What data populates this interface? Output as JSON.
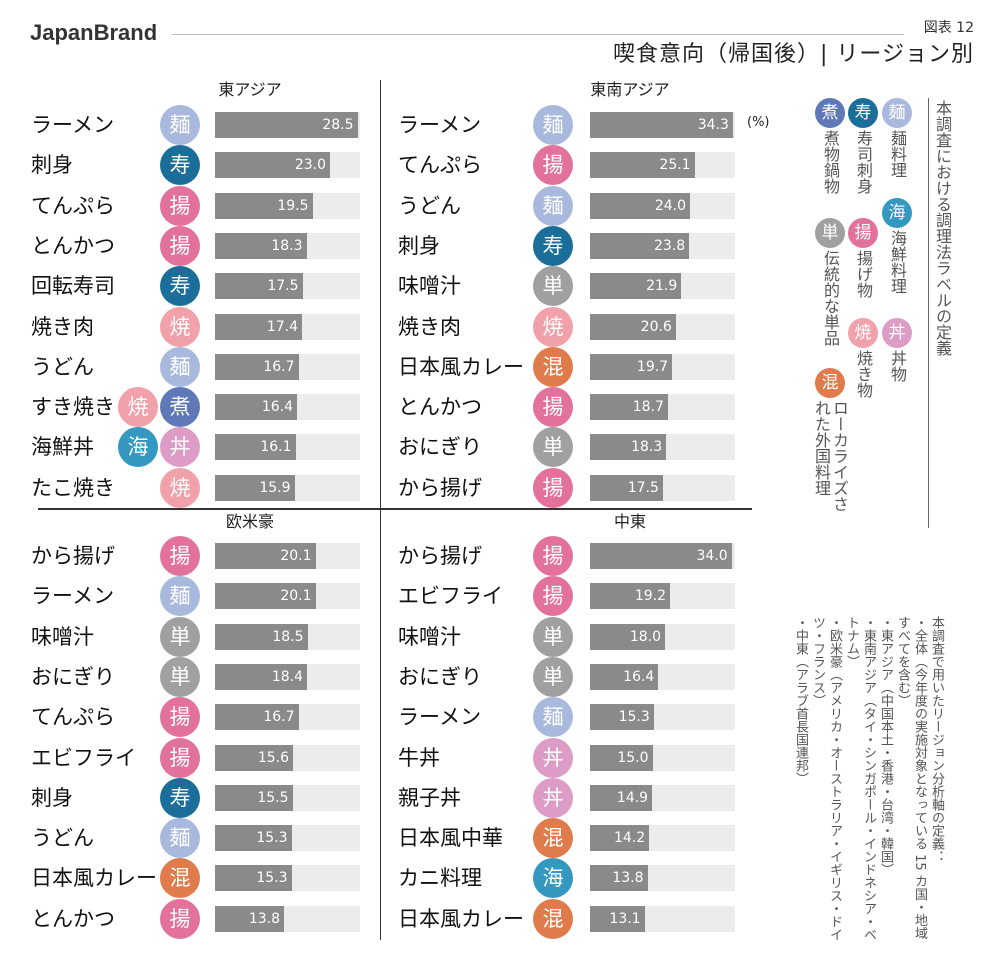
{
  "header": {
    "brand": "JapanBrand",
    "figure_no": "図表 12",
    "title": "喫食意向（帰国後）| リージョン別"
  },
  "colors": {
    "麺": "#a9b9dd",
    "寿": "#1b6e99",
    "揚": "#e2719b",
    "焼": "#f0a1aa",
    "煮": "#5f78b8",
    "海": "#3598c0",
    "丼": "#dc9cc6",
    "単": "#a0a0a0",
    "混": "#e07b4c",
    "bar": "#8a8a8a",
    "track": "#ececec"
  },
  "legend": {
    "title": "本調査における調理法ラベルの定義",
    "items": [
      {
        "badge": "麺",
        "label": "麺料理"
      },
      {
        "badge": "寿",
        "label": "寿司刺身"
      },
      {
        "badge": "煮",
        "label": "煮物鍋物"
      },
      {
        "badge": "海",
        "label": "海鮮料理"
      },
      {
        "badge": "揚",
        "label": "揚げ物"
      },
      {
        "badge": "単",
        "label": "伝統的な単品"
      },
      {
        "badge": "丼",
        "label": "丼物"
      },
      {
        "badge": "焼",
        "label": "焼き物"
      },
      {
        "badge": "混",
        "label": "ローカライズされた外国料理"
      }
    ]
  },
  "notes": {
    "title": "本調査で用いたリージョン分析軸の定義：",
    "items": [
      "全体（今年度の実施対象となっている 15 カ国・地域すべてを含む）",
      "東アジア（中国本土・香港・台湾・韓国）",
      "東南アジア（タイ・シンガポール・インドネシア・ベトナム）",
      "欧米豪（アメリカ・オーストラリア・イギリス・ドイツ・フランス）",
      "中東（アラブ首長国連邦）"
    ]
  },
  "chart_data": [
    {
      "type": "bar",
      "orientation": "horizontal",
      "title": "東アジア",
      "unit": "",
      "xlim": [
        0,
        29
      ],
      "categories": [
        "ラーメン",
        "刺身",
        "てんぷら",
        "とんかつ",
        "回転寿司",
        "焼き肉",
        "うどん",
        "すき焼き",
        "海鮮丼",
        "たこ焼き"
      ],
      "badges": [
        [
          "麺"
        ],
        [
          "寿"
        ],
        [
          "揚"
        ],
        [
          "揚"
        ],
        [
          "寿"
        ],
        [
          "焼"
        ],
        [
          "麺"
        ],
        [
          "焼",
          "煮"
        ],
        [
          "海",
          "丼"
        ],
        [
          "焼"
        ]
      ],
      "values": [
        28.5,
        23.0,
        19.5,
        18.3,
        17.5,
        17.4,
        16.7,
        16.4,
        16.1,
        15.9
      ]
    },
    {
      "type": "bar",
      "orientation": "horizontal",
      "title": "東南アジア",
      "unit": "(%)",
      "xlim": [
        0,
        34.8
      ],
      "categories": [
        "ラーメン",
        "てんぷら",
        "うどん",
        "刺身",
        "味噌汁",
        "焼き肉",
        "日本風カレー",
        "とんかつ",
        "おにぎり",
        "から揚げ"
      ],
      "badges": [
        [
          "麺"
        ],
        [
          "揚"
        ],
        [
          "麺"
        ],
        [
          "寿"
        ],
        [
          "単"
        ],
        [
          "焼"
        ],
        [
          "混"
        ],
        [
          "揚"
        ],
        [
          "単"
        ],
        [
          "揚"
        ]
      ],
      "values": [
        34.3,
        25.1,
        24.0,
        23.8,
        21.9,
        20.6,
        19.7,
        18.7,
        18.3,
        17.5
      ]
    },
    {
      "type": "bar",
      "orientation": "horizontal",
      "title": "欧米豪",
      "unit": "",
      "xlim": [
        0,
        29
      ],
      "categories": [
        "から揚げ",
        "ラーメン",
        "味噌汁",
        "おにぎり",
        "てんぷら",
        "エビフライ",
        "刺身",
        "うどん",
        "日本風カレー",
        "とんかつ"
      ],
      "badges": [
        [
          "揚"
        ],
        [
          "麺"
        ],
        [
          "単"
        ],
        [
          "単"
        ],
        [
          "揚"
        ],
        [
          "揚"
        ],
        [
          "寿"
        ],
        [
          "麺"
        ],
        [
          "混"
        ],
        [
          "揚"
        ]
      ],
      "values": [
        20.1,
        20.1,
        18.5,
        18.4,
        16.7,
        15.6,
        15.5,
        15.3,
        15.3,
        13.8
      ]
    },
    {
      "type": "bar",
      "orientation": "horizontal",
      "title": "中東",
      "unit": "",
      "xlim": [
        0,
        34.8
      ],
      "categories": [
        "から揚げ",
        "エビフライ",
        "味噌汁",
        "おにぎり",
        "ラーメン",
        "牛丼",
        "親子丼",
        "日本風中華",
        "カニ料理",
        "日本風カレー"
      ],
      "badges": [
        [
          "揚"
        ],
        [
          "揚"
        ],
        [
          "単"
        ],
        [
          "単"
        ],
        [
          "麺"
        ],
        [
          "丼"
        ],
        [
          "丼"
        ],
        [
          "混"
        ],
        [
          "海"
        ],
        [
          "混"
        ]
      ],
      "values": [
        34.0,
        19.2,
        18.0,
        16.4,
        15.3,
        15.0,
        14.9,
        14.2,
        13.8,
        13.1
      ]
    }
  ]
}
